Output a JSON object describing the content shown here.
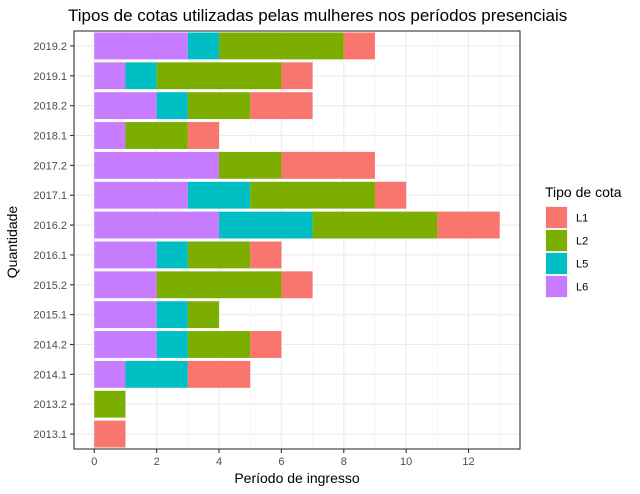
{
  "chart_data": {
    "type": "bar",
    "orientation": "horizontal",
    "stacked": true,
    "title": "Tipos de cotas utilizadas pelas mulheres nos períodos presenciais",
    "xlabel": "Período de ingresso",
    "ylabel": "Quantidade",
    "xlim": [
      -0.65,
      13.65
    ],
    "xticks": [
      0,
      2,
      4,
      6,
      8,
      10,
      12
    ],
    "categories": [
      "2019.2",
      "2019.1",
      "2018.2",
      "2018.1",
      "2017.2",
      "2017.1",
      "2016.2",
      "2016.1",
      "2015.2",
      "2015.1",
      "2014.2",
      "2014.1",
      "2013.2",
      "2013.1"
    ],
    "stack_order": [
      "L6",
      "L5",
      "L2",
      "L1"
    ],
    "series": [
      {
        "name": "L6",
        "color": "#C77CFF",
        "values": [
          3,
          1,
          2,
          1,
          4,
          3,
          4,
          2,
          2,
          2,
          2,
          1,
          0,
          0
        ]
      },
      {
        "name": "L5",
        "color": "#00BFC4",
        "values": [
          1,
          1,
          1,
          0,
          0,
          2,
          3,
          1,
          0,
          1,
          1,
          2,
          0,
          0
        ]
      },
      {
        "name": "L2",
        "color": "#7CAE00",
        "values": [
          4,
          4,
          2,
          2,
          2,
          4,
          4,
          2,
          4,
          1,
          2,
          0,
          1,
          0
        ]
      },
      {
        "name": "L1",
        "color": "#F8766D",
        "values": [
          1,
          1,
          2,
          1,
          3,
          1,
          2,
          1,
          1,
          0,
          1,
          2,
          0,
          1
        ]
      }
    ],
    "grid": true,
    "legend": {
      "title": "Tipo de cota",
      "placement": "right",
      "order": [
        "L1",
        "L2",
        "L5",
        "L6"
      ]
    }
  }
}
